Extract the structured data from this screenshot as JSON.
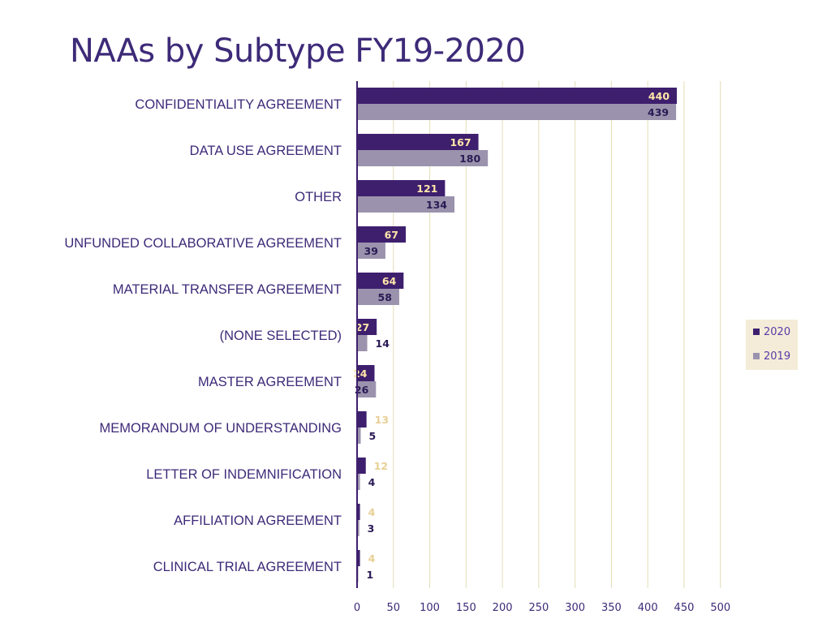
{
  "header": {
    "title": "NAAs by Subtype FY19-2020"
  },
  "colors": {
    "series_2020": "#3e1f6e",
    "series_2019": "#9b93ad",
    "label_2020_inside": "#ffe6a8",
    "label_2019_inside": "#2a1a55",
    "label_2020_outside": "#e8cf95",
    "label_2019_outside": "#2a1a55",
    "grid": "#e3deb6",
    "axis": "#3e1f6e",
    "legend_bg": "#f4ecd8"
  },
  "chart_data": {
    "type": "bar",
    "orientation": "horizontal",
    "title": "NAAs by Subtype FY19-2020",
    "xlabel": "",
    "ylabel": "",
    "xlim": [
      0,
      500
    ],
    "xticks": [
      0,
      50,
      100,
      150,
      200,
      250,
      300,
      350,
      400,
      450,
      500
    ],
    "grid": true,
    "legend": "right",
    "categories": [
      "CONFIDENTIALITY AGREEMENT",
      "DATA USE AGREEMENT",
      "OTHER",
      "UNFUNDED COLLABORATIVE AGREEMENT",
      "MATERIAL TRANSFER AGREEMENT",
      "(NONE SELECTED)",
      "MASTER AGREEMENT",
      "MEMORANDUM OF UNDERSTANDING",
      "LETTER OF INDEMNIFICATION",
      "AFFILIATION AGREEMENT",
      "CLINICAL TRIAL AGREEMENT"
    ],
    "series": [
      {
        "name": "2020",
        "values": [
          440,
          167,
          121,
          67,
          64,
          27,
          24,
          13,
          12,
          4,
          4
        ]
      },
      {
        "name": "2019",
        "values": [
          439,
          180,
          134,
          39,
          58,
          14,
          26,
          5,
          4,
          3,
          1
        ]
      }
    ]
  }
}
